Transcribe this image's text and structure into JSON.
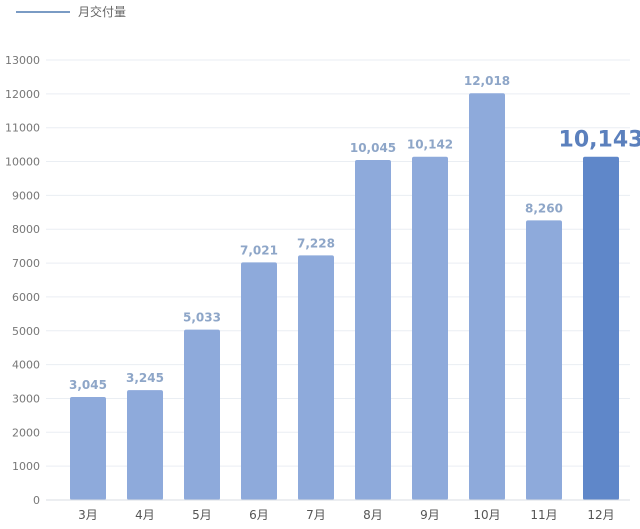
{
  "chart_data": {
    "type": "bar",
    "categories": [
      "3月",
      "4月",
      "5月",
      "6月",
      "7月",
      "8月",
      "9月",
      "10月",
      "11月",
      "12月"
    ],
    "series": [
      {
        "name": "月交付量",
        "values": [
          3045,
          3245,
          5033,
          7021,
          7228,
          10045,
          10142,
          12018,
          8260,
          10143
        ]
      }
    ],
    "data_labels": [
      "3,045",
      "3,245",
      "5,033",
      "7,021",
      "7,228",
      "10,045",
      "10,142",
      "12,018",
      "8,260",
      "10,143"
    ],
    "highlight_index": 9,
    "y_ticks": [
      "0",
      "1000",
      "2000",
      "3000",
      "4000",
      "5000",
      "6000",
      "7000",
      "8000",
      "9000",
      "10000",
      "11000",
      "12000",
      "13000"
    ],
    "ylim": [
      0,
      13000
    ],
    "grid": true,
    "legend_position": "top-left",
    "colors": {
      "bar": "#8eaadb",
      "bar_highlight": "#5f87c9",
      "label": "#8ea6c8",
      "label_highlight": "#5b80bd",
      "legend_line": "#7a9bc4",
      "grid": "#eaeef3",
      "axis": "#d9dde3"
    }
  }
}
